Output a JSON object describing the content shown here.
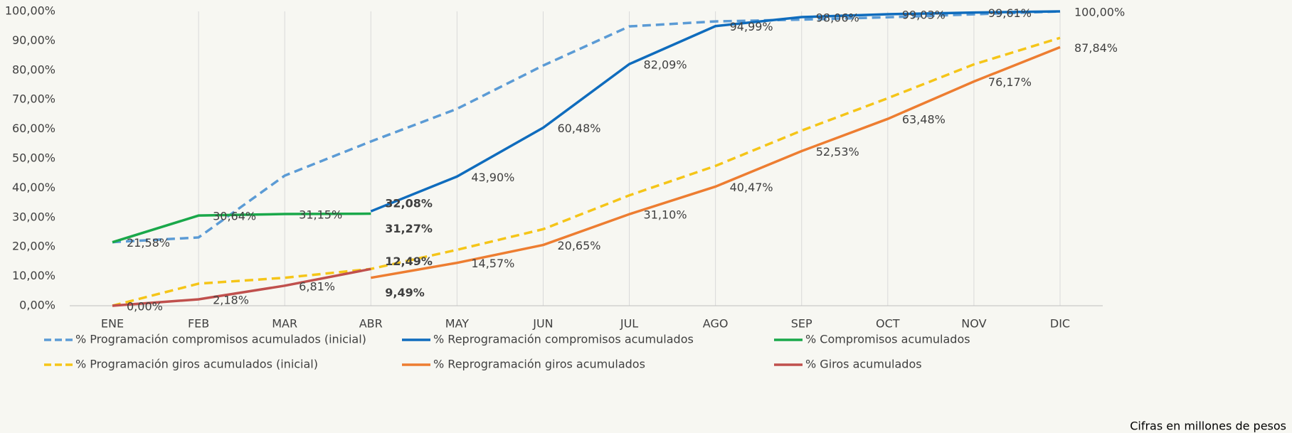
{
  "chart_data": {
    "type": "line",
    "categories": [
      "ENE",
      "FEB",
      "MAR",
      "ABR",
      "MAY",
      "JUN",
      "JUL",
      "AGO",
      "SEP",
      "OCT",
      "NOV",
      "DIC"
    ],
    "ylim": [
      0,
      100
    ],
    "yticks": [
      {
        "value": 0,
        "label": "0,00%"
      },
      {
        "value": 10,
        "label": "10,00%"
      },
      {
        "value": 20,
        "label": "20,00%"
      },
      {
        "value": 30,
        "label": "30,00%"
      },
      {
        "value": 40,
        "label": "40,00%"
      },
      {
        "value": 50,
        "label": "50,00%"
      },
      {
        "value": 60,
        "label": "60,00%"
      },
      {
        "value": 70,
        "label": "70,00%"
      },
      {
        "value": 80,
        "label": "80,00%"
      },
      {
        "value": 90,
        "label": "90,00%"
      },
      {
        "value": 100,
        "label": "100,00%"
      }
    ],
    "grid": true,
    "series": [
      {
        "name": "% Programación compromisos acumulados (inicial)",
        "color": "#5b9bd5",
        "dashed": true,
        "values": [
          21.6,
          23.2,
          44.2,
          55.8,
          66.9,
          81.6,
          94.9,
          96.6,
          97.2,
          98,
          99,
          100
        ]
      },
      {
        "name": "% Reprogramación compromisos acumulados",
        "color": "#0f6cbd",
        "dashed": false,
        "values": [
          null,
          null,
          null,
          32.08,
          43.9,
          60.48,
          82.09,
          94.99,
          98.06,
          99.03,
          99.61,
          100
        ],
        "value_labels": [
          null,
          null,
          null,
          "32,08%",
          "43,90%",
          "60,48%",
          "82,09%",
          "94,99%",
          "98,06%",
          "99,03%",
          "99,61%",
          "100,00%"
        ]
      },
      {
        "name": "% Compromisos acumulados",
        "color": "#1aa84a",
        "dashed": false,
        "values": [
          21.58,
          30.64,
          31.15,
          31.27,
          null,
          null,
          null,
          null,
          null,
          null,
          null,
          null
        ],
        "value_labels": [
          "21,58%",
          "30,64%",
          "31,15%",
          "31,27%",
          null,
          null,
          null,
          null,
          null,
          null,
          null,
          null
        ]
      },
      {
        "name": "% Programación giros acumulados (inicial)",
        "color": "#f5c518",
        "dashed": true,
        "values": [
          0,
          7.5,
          9.5,
          12.5,
          19,
          26,
          37.5,
          47.5,
          59.5,
          70.5,
          82,
          91
        ]
      },
      {
        "name": "% Reprogramación giros acumulados",
        "color": "#ed7d31",
        "dashed": false,
        "values": [
          null,
          null,
          null,
          9.49,
          14.57,
          20.65,
          31.1,
          40.47,
          52.53,
          63.48,
          76.17,
          87.84
        ],
        "value_labels": [
          null,
          null,
          null,
          "9,49%",
          "14,57%",
          "20,65%",
          "31,10%",
          "40,47%",
          "52,53%",
          "63,48%",
          "76,17%",
          "87,84%"
        ]
      },
      {
        "name": "% Giros acumulados",
        "color": "#c0504d",
        "dashed": false,
        "values": [
          0,
          2.18,
          6.81,
          12.49,
          null,
          null,
          null,
          null,
          null,
          null,
          null,
          null
        ],
        "value_labels": [
          "0,00%",
          "2,18%",
          "6,81%",
          "12,49%",
          null,
          null,
          null,
          null,
          null,
          null,
          null,
          null
        ]
      }
    ],
    "footnote": "Cifras en millones de pesos"
  }
}
